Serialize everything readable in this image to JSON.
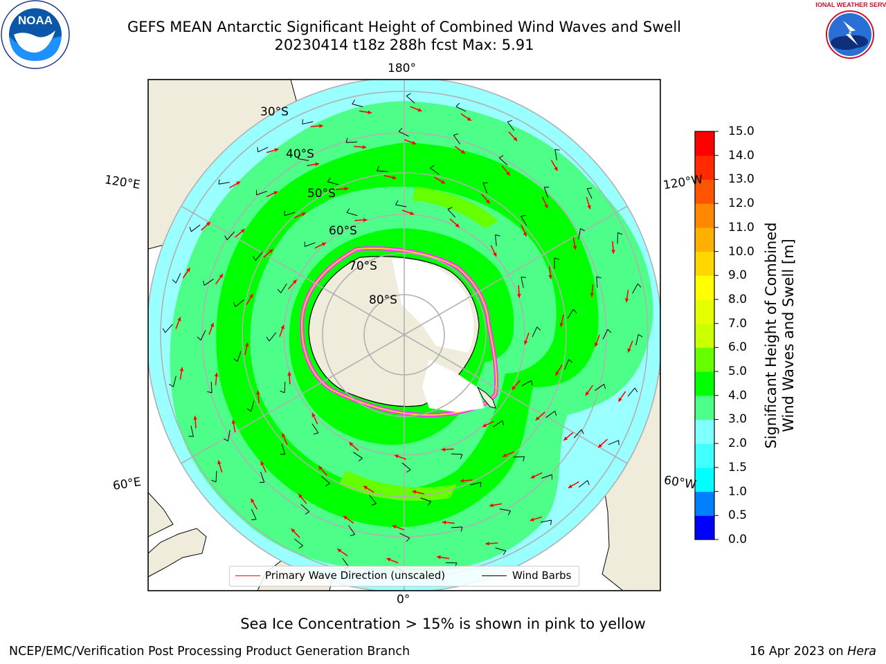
{
  "title": {
    "line1": "GEFS MEAN Antarctic Significant Height of Combined Wind Waves and Swell",
    "line2": "20230414 t18z 288h fcst   Max: 5.91"
  },
  "logos": {
    "left": {
      "icon": "noaa-logo-icon",
      "text": "NOAA"
    },
    "right": {
      "icon": "nws-logo-icon",
      "text": "NATIONAL WEATHER SERVICE"
    }
  },
  "map": {
    "projection": "south-polar-stereographic",
    "lon_labels": {
      "top": "180°",
      "upper_left": "120°E",
      "upper_right": "120°W",
      "lower_left": "60°E",
      "lower_right": "60°W",
      "bottom": "0°"
    },
    "lat_labels": [
      "30°S",
      "40°S",
      "50°S",
      "60°S",
      "70°S",
      "80°S"
    ],
    "colors": {
      "land": "#efecdc",
      "ice_shelf": "#ffffff",
      "sea_ice_edge": "#ff33ff",
      "graticule": "#b0b0b0",
      "wave_arrow": "#ff0000",
      "wind_barb": "#000000"
    }
  },
  "legend": {
    "primary_wave": "Primary Wave Direction (unscaled)",
    "wind_barbs": "Wind Barbs"
  },
  "colorbar": {
    "label_line1": "Significant Height of Combined",
    "label_line2": "Wind Waves and Swell [m]",
    "ticks": [
      "0.0",
      "0.5",
      "1.0",
      "1.5",
      "2.0",
      "3.0",
      "4.0",
      "5.0",
      "6.0",
      "7.0",
      "8.0",
      "9.0",
      "10.0",
      "11.0",
      "12.0",
      "13.0",
      "14.0",
      "15.0"
    ],
    "colors": [
      "#0000ff",
      "#0080ff",
      "#00ffff",
      "#40ffff",
      "#80ffff",
      "#4dff88",
      "#00ff00",
      "#66ff00",
      "#ccff00",
      "#e6ff00",
      "#ffff00",
      "#ffd700",
      "#ffb000",
      "#ff8800",
      "#ff5500",
      "#ff2a00",
      "#ff0000"
    ]
  },
  "note": "Sea Ice Concentration > 15% is shown in pink to yellow",
  "footer": {
    "left": "NCEP/EMC/Verification Post Processing Product Generation Branch",
    "right_date": "16 Apr 2023 on ",
    "right_host": "Hera"
  }
}
